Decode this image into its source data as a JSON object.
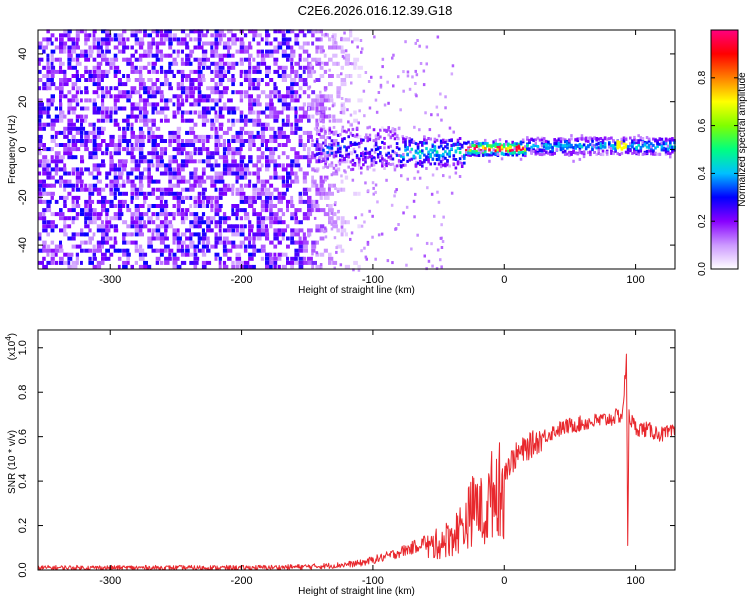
{
  "figure_title": "C2E6.2026.016.12.39.G18",
  "chart_data": [
    {
      "type": "heatmap",
      "title": "C2E6.2026.016.12.39.G18",
      "xlabel": "Height of straight line (km)",
      "ylabel": "Frequency (Hz)",
      "xlim": [
        -355,
        130
      ],
      "ylim": [
        -50,
        50
      ],
      "x_ticks": [
        -300,
        -200,
        -100,
        0,
        100
      ],
      "y_ticks": [
        -40,
        -20,
        0,
        20,
        40
      ],
      "colorbar": {
        "label": "Normalized spectral amplitude",
        "range": [
          0.0,
          1.0
        ],
        "ticks": [
          0.0,
          0.2,
          0.4,
          0.6,
          0.8
        ],
        "colors": [
          "#ffffff",
          "#cc99ff",
          "#8800ff",
          "#0000ff",
          "#00c0ff",
          "#00ff80",
          "#80ff00",
          "#ffff00",
          "#ff8000",
          "#ff0000",
          "#ff0080"
        ]
      },
      "description_points": [
        {
          "height": -340,
          "dominant": "noise, amplitude ~0.1-0.2 across all frequencies"
        },
        {
          "height": -150,
          "dominant": "noise fades"
        },
        {
          "height": -130,
          "dominant": "signal emerges near 0 Hz, spread +/-10 Hz"
        },
        {
          "height": -60,
          "dominant": "signal near 0 Hz, amplitude ~0.5"
        },
        {
          "height": -20,
          "dominant": "signal at 0 Hz, amplitude ~0.9"
        },
        {
          "height": 100,
          "dominant": "signal at ~1 Hz, amplitude ~0.45"
        }
      ]
    },
    {
      "type": "line",
      "xlabel": "Height of straight line (km)",
      "ylabel": "SNR (10 * v/v)",
      "y_exponent_label": "(x10",
      "y_exponent": "4",
      "y_exponent_close": ")",
      "xlim": [
        -355,
        130
      ],
      "ylim": [
        0,
        1.08
      ],
      "x_ticks": [
        -300,
        -200,
        -100,
        0,
        100
      ],
      "y_ticks": [
        "0.0",
        "0.2",
        "0.4",
        "0.6",
        "0.8",
        "1.0"
      ],
      "y_tick_values": [
        0,
        0.2,
        0.4,
        0.6,
        0.8,
        1.0
      ],
      "series": [
        {
          "name": "SNR",
          "color": "#e8282d",
          "x": [
            -355,
            -300,
            -250,
            -200,
            -170,
            -150,
            -130,
            -110,
            -90,
            -70,
            -50,
            -40,
            -30,
            -25,
            -20,
            -15,
            -10,
            -5,
            0,
            10,
            20,
            30,
            40,
            50,
            60,
            70,
            80,
            90,
            93,
            94,
            95,
            96,
            100,
            110,
            120,
            130
          ],
          "y": [
            0.01,
            0.01,
            0.01,
            0.01,
            0.012,
            0.015,
            0.02,
            0.03,
            0.06,
            0.1,
            0.16,
            0.2,
            0.28,
            0.35,
            0.4,
            0.3,
            0.45,
            0.5,
            0.45,
            0.52,
            0.56,
            0.6,
            0.63,
            0.65,
            0.66,
            0.67,
            0.68,
            0.7,
            0.95,
            0.1,
            0.72,
            0.68,
            0.64,
            0.63,
            0.61,
            0.62
          ],
          "noise": 0.06
        }
      ]
    }
  ]
}
